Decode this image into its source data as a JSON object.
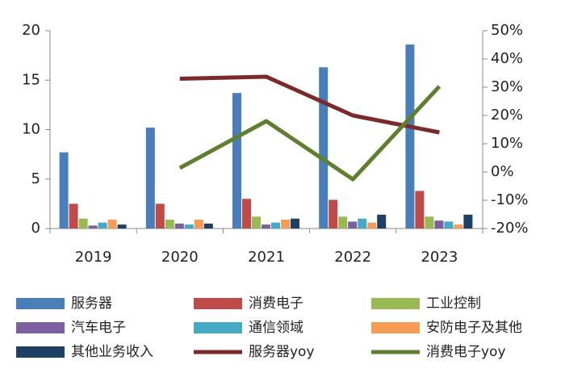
{
  "chart_data": {
    "type": "bar",
    "categories": [
      "2019",
      "2020",
      "2021",
      "2022",
      "2023"
    ],
    "ylim": [
      0,
      20
    ],
    "yticks": [
      0,
      5,
      10,
      15,
      20
    ],
    "y2lim": [
      -20,
      50
    ],
    "y2ticks": [
      {
        "value": -20,
        "label": "-20%"
      },
      {
        "value": -10,
        "label": "-10%"
      },
      {
        "value": 0,
        "label": "0%"
      },
      {
        "value": 10,
        "label": "10%"
      },
      {
        "value": 20,
        "label": "20%"
      },
      {
        "value": 30,
        "label": "30%"
      },
      {
        "value": 40,
        "label": "40%"
      },
      {
        "value": 50,
        "label": "50%"
      }
    ],
    "series": [
      {
        "name": "服务器",
        "color": "#4a7ebb",
        "values": [
          7.7,
          10.2,
          13.7,
          16.3,
          18.6
        ]
      },
      {
        "name": "消费电子",
        "color": "#be4b48",
        "values": [
          2.5,
          2.5,
          3.0,
          2.9,
          3.8
        ]
      },
      {
        "name": "工业控制",
        "color": "#98b954",
        "values": [
          1.0,
          0.9,
          1.2,
          1.2,
          1.2
        ]
      },
      {
        "name": "汽车电子",
        "color": "#7d60a0",
        "values": [
          0.3,
          0.5,
          0.4,
          0.7,
          0.8
        ]
      },
      {
        "name": "通信领域",
        "color": "#46aac5",
        "values": [
          0.6,
          0.4,
          0.6,
          1.0,
          0.7
        ]
      },
      {
        "name": "安防电子及其他",
        "color": "#f59d56",
        "values": [
          0.9,
          0.9,
          0.9,
          0.6,
          0.4
        ]
      },
      {
        "name": "其他业务收入",
        "color": "#1f3f66",
        "values": [
          0.4,
          0.5,
          1.0,
          1.4,
          1.4
        ]
      },
      {
        "name": "服务器yoy",
        "type": "line",
        "axis": "y2",
        "color": "#7b2a2a",
        "values": [
          null,
          33,
          33.7,
          20,
          14
        ]
      },
      {
        "name": "消费电子yoy",
        "type": "line",
        "axis": "y2",
        "color": "#5f7f30",
        "values": [
          null,
          1.4,
          18,
          -2.6,
          30.3
        ]
      }
    ]
  }
}
